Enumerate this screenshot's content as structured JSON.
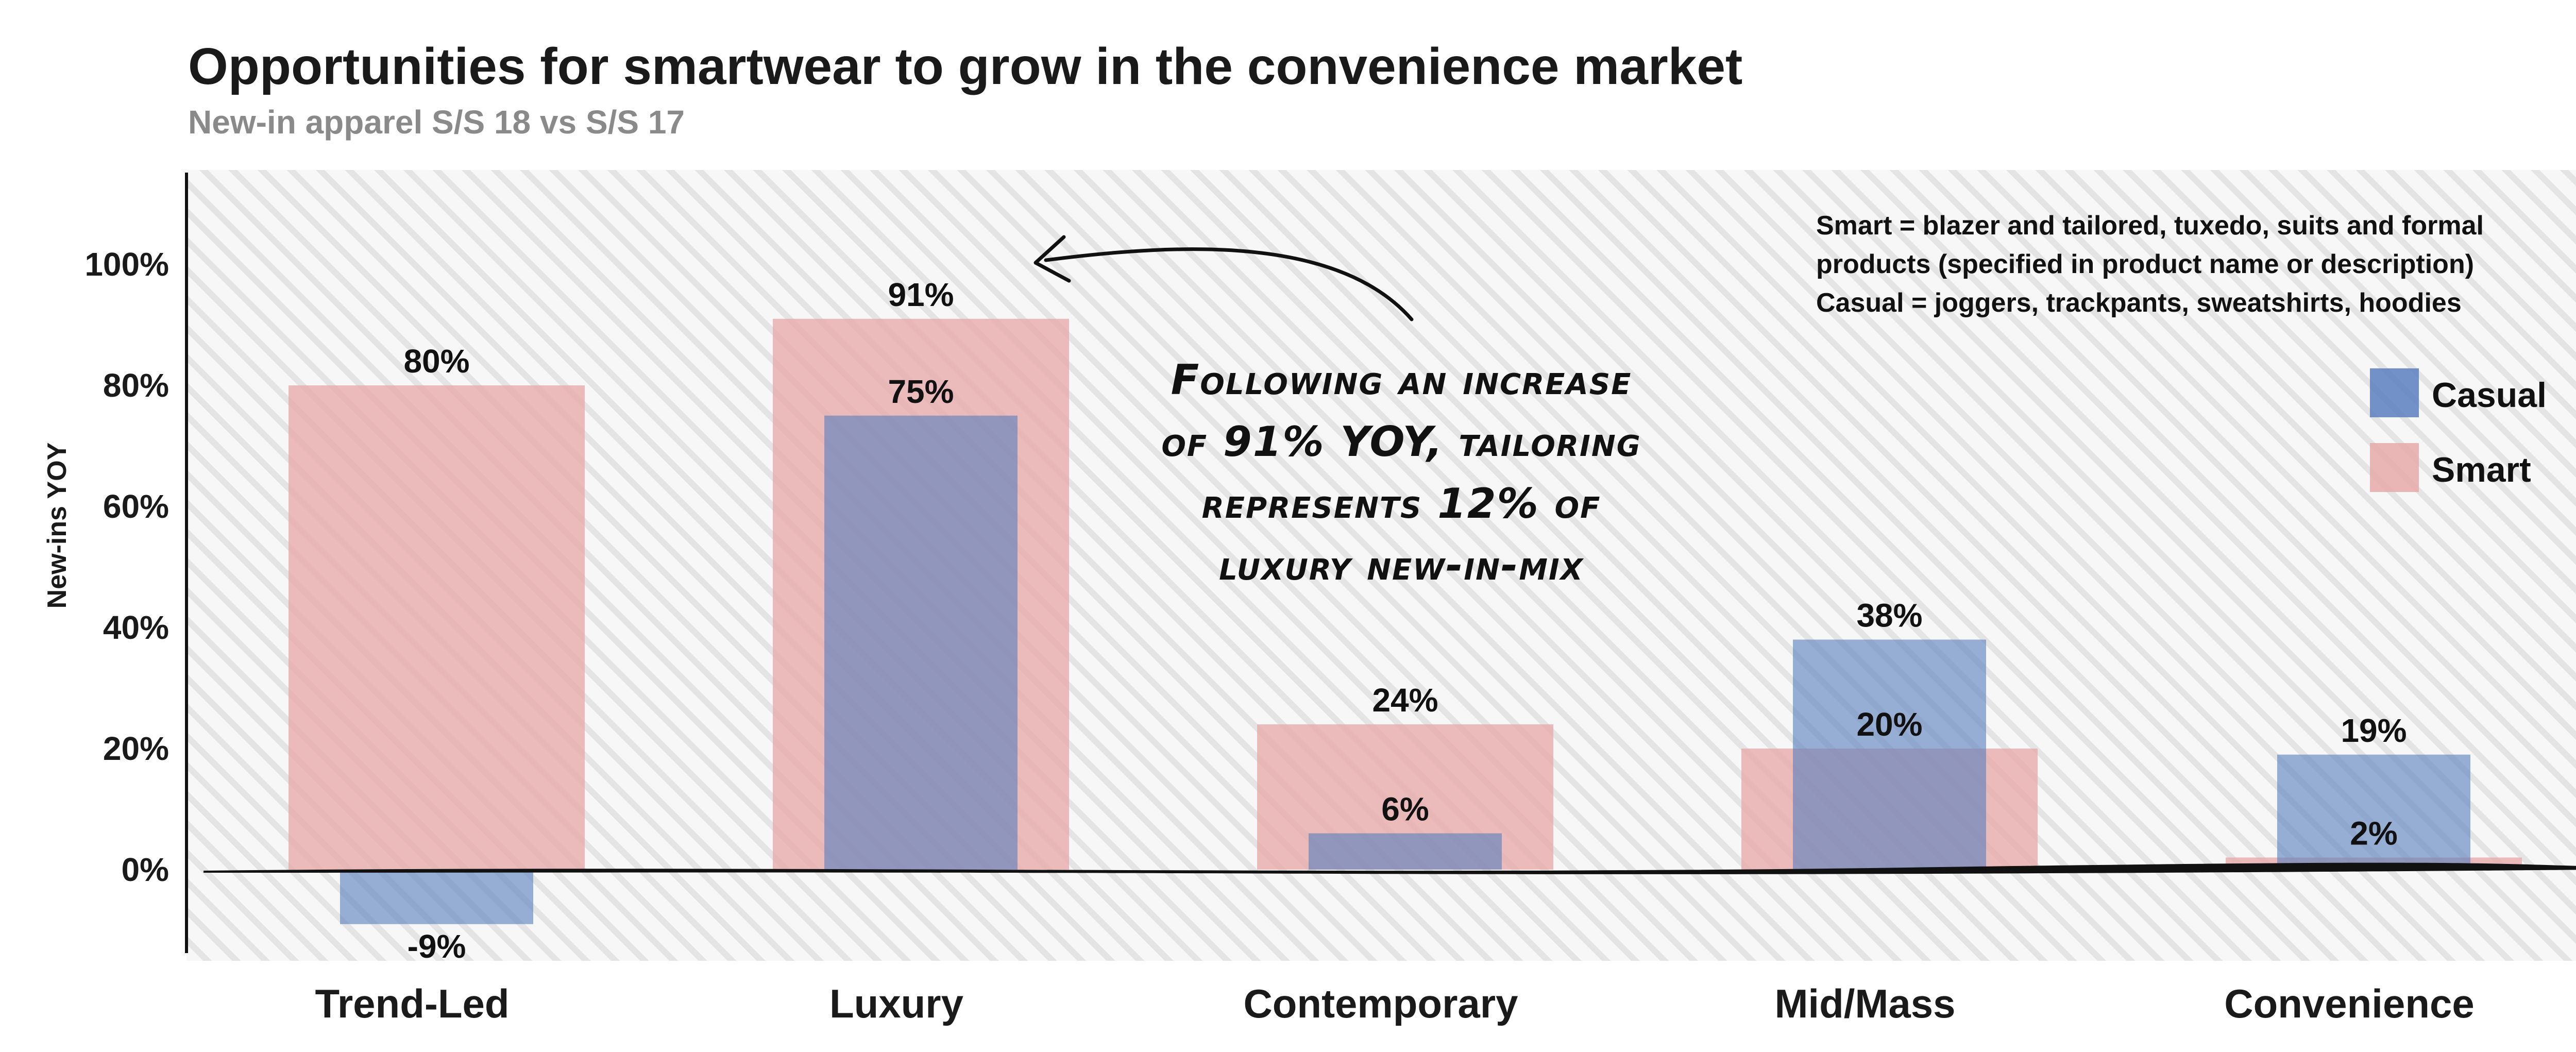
{
  "header": {
    "title": "Opportunities for smartwear to grow in the convenience market",
    "subtitle": "New-in apparel S/S 18 vs S/S 17"
  },
  "colors": {
    "casual": "#5a7fbf",
    "smart": "#e8a9a9",
    "background_stripe": "#e6e6e6"
  },
  "note": {
    "lines": [
      "Smart = blazer and tailored, tuxedo, suits and formal",
      "products (specified in product name or description)",
      "Casual = joggers, trackpants, sweatshirts, hoodies"
    ]
  },
  "annotation": {
    "lines": [
      "Following an increase",
      "of 91% YOY, tailoring",
      "represents 12% of",
      "luxury new-in-mix"
    ]
  },
  "chart_data": {
    "type": "bar",
    "title": "Opportunities for smartwear to grow in the convenience market",
    "subtitle": "New-in apparel S/S 18 vs S/S 17",
    "xlabel": "",
    "ylabel": "New-ins YOY",
    "categories": [
      "Trend-Led",
      "Luxury",
      "Contemporary",
      "Mid/Mass",
      "Convenience"
    ],
    "series": [
      {
        "name": "Smart",
        "values": [
          80,
          91,
          24,
          20,
          2
        ],
        "labels": [
          "80%",
          "91%",
          "24%",
          "20%",
          "2%"
        ]
      },
      {
        "name": "Casual",
        "values": [
          -9,
          75,
          6,
          38,
          19
        ],
        "labels": [
          "-9%",
          "75%",
          "6%",
          "38%",
          "19%"
        ]
      }
    ],
    "ylim": [
      -15,
      115
    ],
    "yticks": [
      0,
      20,
      40,
      60,
      80,
      100
    ],
    "ytick_labels": [
      "0%",
      "20%",
      "40%",
      "60%",
      "80%",
      "100%"
    ],
    "grid": false,
    "legend": {
      "placement": "top-right",
      "entries": [
        "Casual",
        "Smart"
      ]
    }
  }
}
